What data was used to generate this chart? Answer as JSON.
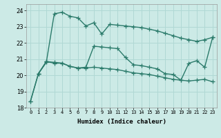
{
  "xlabel": "Humidex (Indice chaleur)",
  "bg_color": "#cceae6",
  "grid_color": "#b0d8d4",
  "line_color": "#2a7a6a",
  "xlim": [
    -0.5,
    23.5
  ],
  "ylim": [
    18,
    24.4
  ],
  "yticks": [
    18,
    19,
    20,
    21,
    22,
    23,
    24
  ],
  "xtick_labels": [
    "0",
    "1",
    "2",
    "3",
    "4",
    "5",
    "6",
    "7",
    "8",
    "9",
    "10",
    "11",
    "12",
    "13",
    "14",
    "15",
    "16",
    "17",
    "18",
    "19",
    "20",
    "21",
    "22",
    "23"
  ],
  "line1_x": [
    0,
    1,
    2,
    3,
    4,
    5,
    6,
    7,
    8,
    9,
    10,
    11,
    12,
    13,
    14,
    15,
    16,
    17,
    18,
    19,
    20,
    21,
    22,
    23
  ],
  "line1_y": [
    18.4,
    20.1,
    20.8,
    23.8,
    23.9,
    23.65,
    23.55,
    23.05,
    23.25,
    22.55,
    23.15,
    23.1,
    23.05,
    23.0,
    22.95,
    22.85,
    22.75,
    22.6,
    22.45,
    22.3,
    22.2,
    22.1,
    22.2,
    22.35
  ],
  "line2_x": [
    1,
    2,
    3,
    4,
    5,
    6,
    7,
    8,
    9,
    10,
    11,
    12,
    13,
    14,
    15,
    16,
    17,
    18,
    19,
    20,
    21,
    22,
    23
  ],
  "line2_y": [
    20.1,
    20.85,
    20.8,
    20.75,
    20.55,
    20.45,
    20.5,
    21.8,
    21.75,
    21.7,
    21.65,
    21.1,
    20.65,
    20.6,
    20.5,
    20.4,
    20.1,
    20.05,
    19.7,
    20.75,
    20.9,
    20.5,
    22.35
  ],
  "line3_x": [
    0,
    1,
    2,
    3,
    4,
    5,
    6,
    7,
    8,
    9,
    10,
    11,
    12,
    13,
    14,
    15,
    16,
    17,
    18,
    19,
    20,
    21,
    22,
    23
  ],
  "line3_y": [
    18.4,
    20.1,
    20.85,
    20.75,
    20.75,
    20.55,
    20.45,
    20.45,
    20.5,
    20.45,
    20.4,
    20.35,
    20.25,
    20.15,
    20.1,
    20.05,
    19.95,
    19.85,
    19.75,
    19.7,
    19.65,
    19.7,
    19.75,
    19.6
  ],
  "marker_size": 4,
  "line_width": 1.0
}
